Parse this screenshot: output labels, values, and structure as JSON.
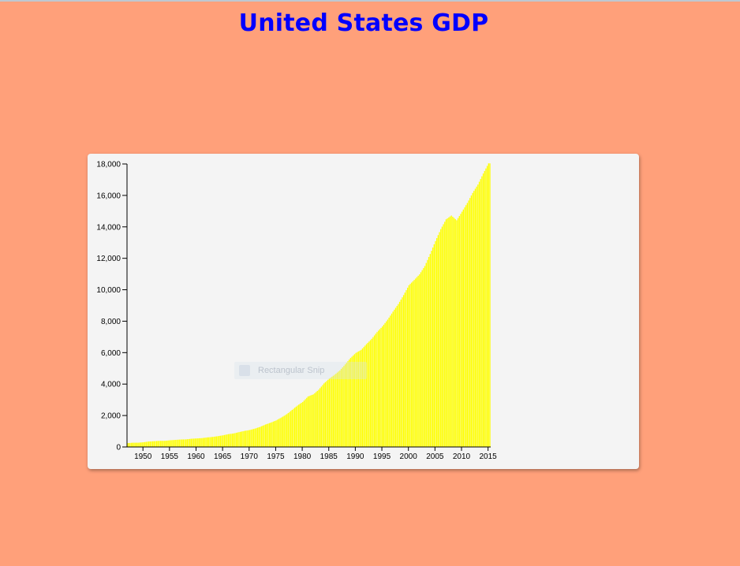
{
  "page": {
    "title": "United States GDP",
    "background_color": "#ffa07a",
    "title_color": "#0000ff"
  },
  "tooltip": {
    "text": "Rectangular Snip"
  },
  "chart_data": {
    "type": "bar",
    "title": "United States GDP",
    "xlabel": "",
    "ylabel": "",
    "bar_color": "#ffff00",
    "card_color": "#f4f4f4",
    "xlim": [
      1947,
      2015.5
    ],
    "ylim": [
      0,
      18000
    ],
    "x_ticks": [
      1950,
      1955,
      1960,
      1965,
      1970,
      1975,
      1980,
      1985,
      1990,
      1995,
      2000,
      2005,
      2010,
      2015
    ],
    "y_ticks": [
      0,
      2000,
      4000,
      6000,
      8000,
      10000,
      12000,
      14000,
      16000,
      18000
    ],
    "x_tick_labels": [
      "1950",
      "1955",
      "1960",
      "1965",
      "1970",
      "1975",
      "1980",
      "1985",
      "1990",
      "1995",
      "2000",
      "2005",
      "2010",
      "2015"
    ],
    "y_tick_labels": [
      "0",
      "2,000",
      "4,000",
      "6,000",
      "8,000",
      "10,000",
      "12,000",
      "14,000",
      "16,000",
      "18,000"
    ],
    "grid": false,
    "legend": "none",
    "series": [
      {
        "x": [
          1947,
          1948,
          1949,
          1950,
          1951,
          1952,
          1953,
          1954,
          1955,
          1956,
          1957,
          1958,
          1959,
          1960,
          1961,
          1962,
          1963,
          1964,
          1965,
          1966,
          1967,
          1968,
          1969,
          1970,
          1971,
          1972,
          1973,
          1974,
          1975,
          1976,
          1977,
          1978,
          1979,
          1980,
          1981,
          1982,
          1983,
          1984,
          1985,
          1986,
          1987,
          1988,
          1989,
          1990,
          1991,
          1992,
          1993,
          1994,
          1995,
          1996,
          1997,
          1998,
          1999,
          2000,
          2001,
          2002,
          2003,
          2004,
          2005,
          2006,
          2007,
          2008,
          2009,
          2010,
          2011,
          2012,
          2013,
          2014,
          2015
        ],
        "values": [
          244,
          270,
          272,
          300,
          347,
          367,
          389,
          391,
          425,
          449,
          474,
          481,
          522,
          543,
          563,
          605,
          638,
          686,
          743,
          815,
          862,
          943,
          1019,
          1076,
          1168,
          1282,
          1429,
          1549,
          1689,
          1878,
          2086,
          2357,
          2632,
          2863,
          3211,
          3345,
          3638,
          4041,
          4347,
          4590,
          4870,
          5253,
          5658,
          5980,
          6174,
          6539,
          6879,
          7309,
          7664,
          8100,
          8609,
          9089,
          9661,
          10285,
          10622,
          10978,
          11511,
          12275,
          13094,
          13856,
          14478,
          14719,
          14419,
          14964,
          15518,
          16155,
          16692,
          17393,
          18037
        ]
      }
    ]
  }
}
